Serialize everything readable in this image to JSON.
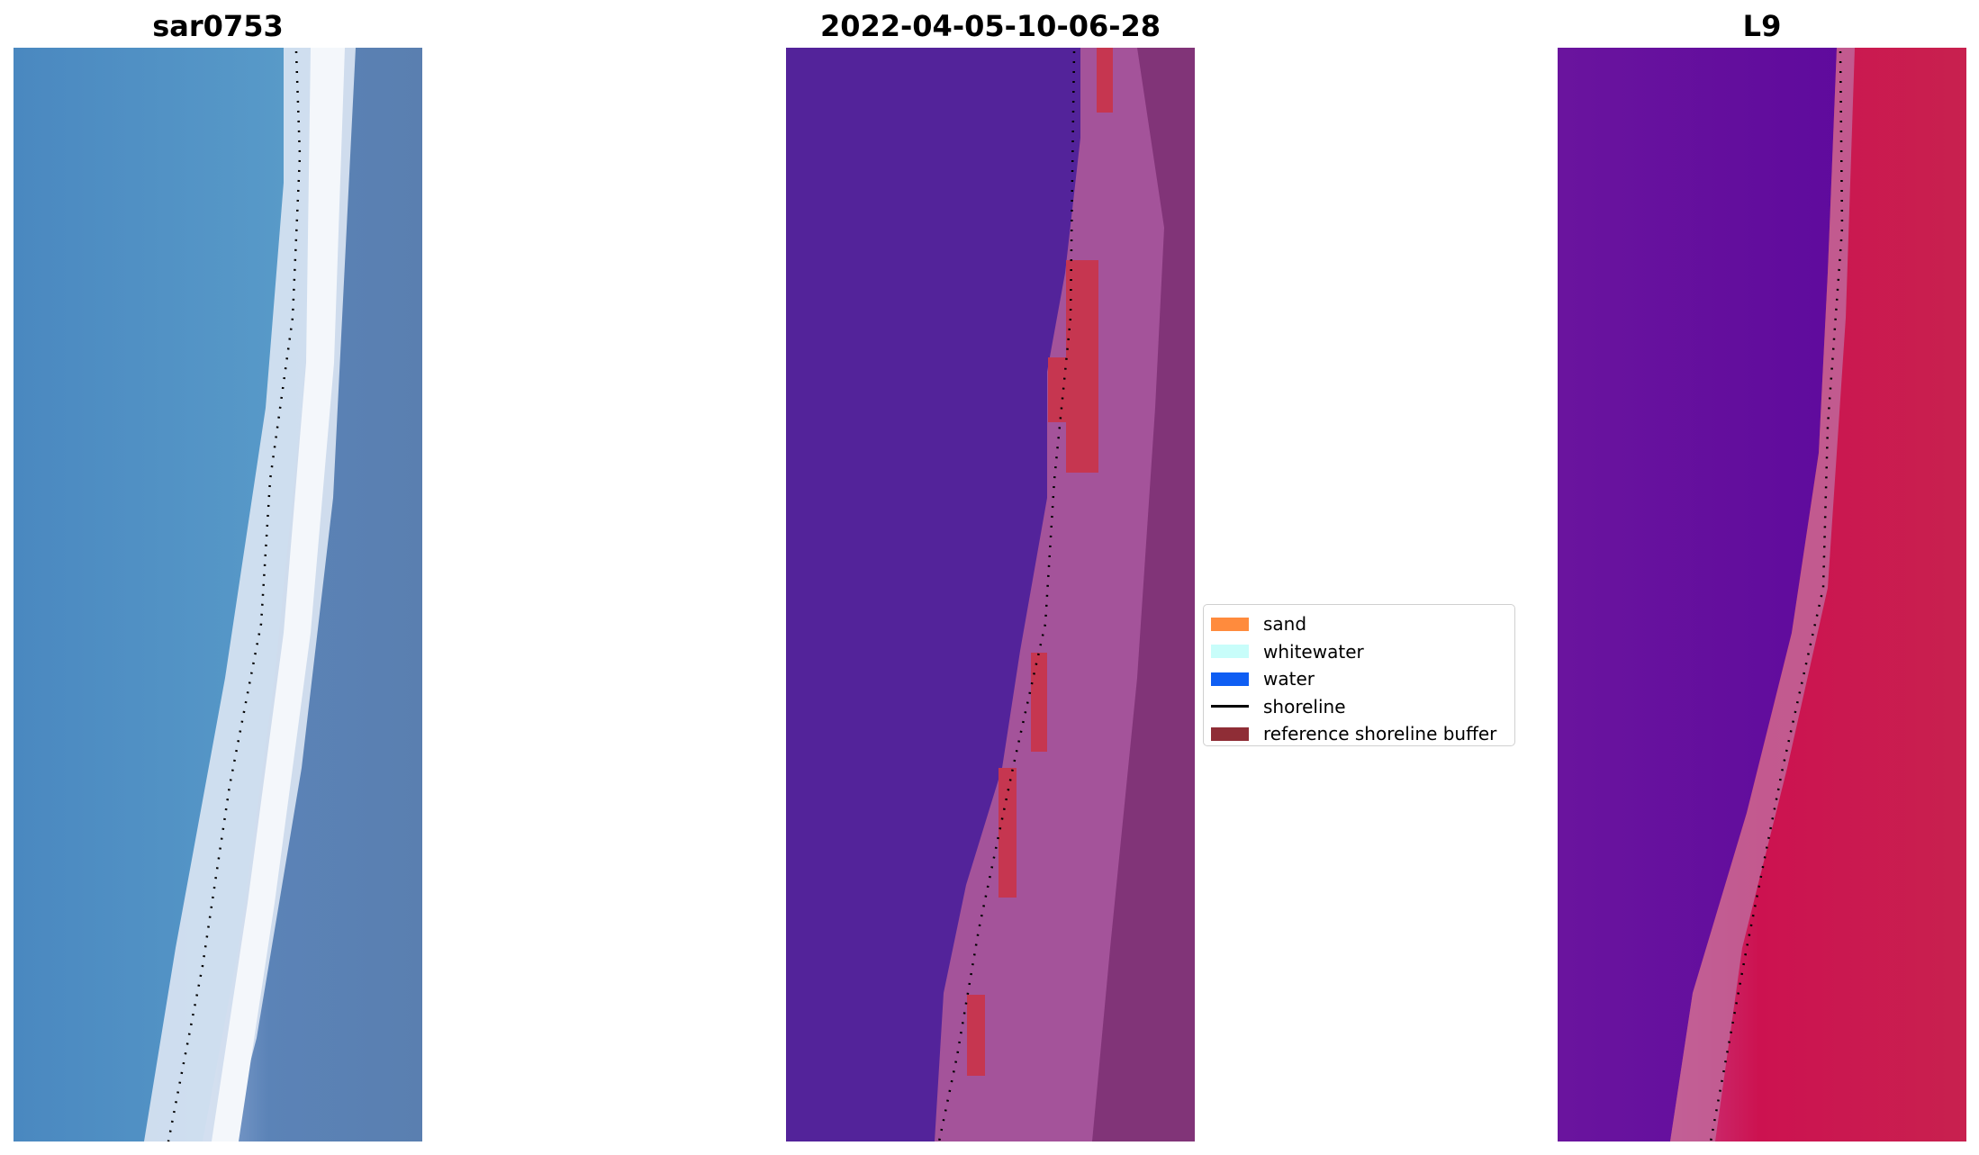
{
  "panels": [
    {
      "id": "rgb",
      "title": "sar0753"
    },
    {
      "id": "classification",
      "title": "2022-04-05-10-06-28"
    },
    {
      "id": "index",
      "title": "L9"
    }
  ],
  "legend": {
    "items": [
      {
        "label": "sand",
        "kind": "patch",
        "color": "#ff8b3d"
      },
      {
        "label": "whitewater",
        "kind": "patch",
        "color": "#c8fdfa"
      },
      {
        "label": "water",
        "kind": "patch",
        "color": "#0f5ef3"
      },
      {
        "label": "shoreline",
        "kind": "line",
        "color": "#000000"
      },
      {
        "label": "reference shoreline buffer",
        "kind": "patch",
        "color": "#8f2d36"
      }
    ]
  },
  "colors": {
    "sea_rgb": "#4a86bd",
    "beach_rgb": "#e8eef8",
    "land_rgb": "#5f86b8",
    "water_class": "#53239a",
    "land_class": "#9e4f93",
    "buffer_class": "#c63650",
    "water_index": "#5c0a9e",
    "land_index": "#c8174f"
  }
}
